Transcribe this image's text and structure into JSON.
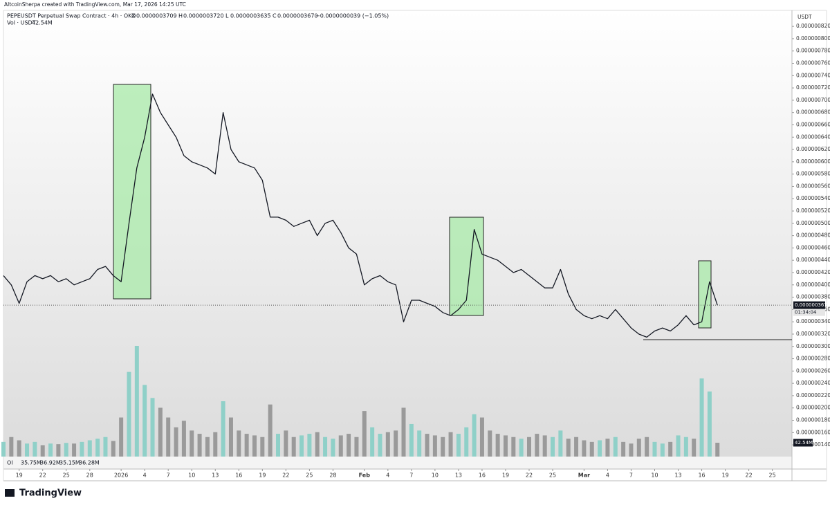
{
  "attribution": "AltcoinSherpa created with TradingView.com, Mar 17, 2026 14:25 UTC",
  "legend": {
    "symbol": "PEPEUSDT Perpetual Swap Contract · 4h · OKX",
    "ohlc": [
      {
        "label": "O",
        "value": "0.0000003709"
      },
      {
        "label": "H",
        "value": "0.0000003720"
      },
      {
        "label": "L",
        "value": "0.0000003635"
      },
      {
        "label": "C",
        "value": "0.0000003670"
      }
    ],
    "change": "−0.0000000039 (−1.05%)"
  },
  "volume_legend": {
    "label": "Vol · USDT",
    "value": "42.54M"
  },
  "oi_legend": {
    "label": "OI",
    "values": [
      "35.75M",
      "36.92M",
      "35.15M",
      "36.28M"
    ]
  },
  "brand": "TradingView",
  "chart_data": [
    {
      "type": "line",
      "y_axis_title": "USDT",
      "color": "#131722",
      "x": [
        -2,
        -1,
        0,
        1,
        2,
        3,
        4,
        5,
        6,
        7,
        8,
        9,
        10,
        11,
        12,
        13,
        14,
        15,
        16,
        17,
        18,
        19,
        20,
        21,
        22,
        23,
        24,
        25,
        26,
        27,
        28,
        29,
        30,
        31,
        32,
        33,
        34,
        35,
        36,
        37,
        38,
        39,
        40,
        41,
        42,
        43,
        44,
        45,
        46,
        47,
        48,
        49,
        50,
        51,
        52,
        53,
        54,
        55,
        56,
        57,
        58,
        59,
        60,
        61,
        62,
        63,
        64,
        65,
        66,
        67,
        68,
        69,
        70,
        71,
        72,
        73,
        74,
        75,
        76,
        77,
        78,
        79,
        80,
        81,
        82,
        83,
        84,
        85,
        86,
        87,
        88,
        89
      ],
      "values": [
        4.15e-07,
        4e-07,
        3.7e-07,
        4.05e-07,
        4.15e-07,
        4.1e-07,
        4.15e-07,
        4.05e-07,
        4.1e-07,
        4e-07,
        4.05e-07,
        4.1e-07,
        4.25e-07,
        4.3e-07,
        4.15e-07,
        4.05e-07,
        5e-07,
        5.9e-07,
        6.4e-07,
        7.1e-07,
        6.8e-07,
        6.6e-07,
        6.4e-07,
        6.1e-07,
        6e-07,
        5.95e-07,
        5.9e-07,
        5.8e-07,
        6.8e-07,
        6.2e-07,
        6e-07,
        5.95e-07,
        5.9e-07,
        5.7e-07,
        5.1e-07,
        5.1e-07,
        5.05e-07,
        4.95e-07,
        5e-07,
        5.05e-07,
        4.8e-07,
        5e-07,
        5.05e-07,
        4.85e-07,
        4.6e-07,
        4.5e-07,
        4e-07,
        4.1e-07,
        4.15e-07,
        4.05e-07,
        4e-07,
        3.4e-07,
        3.75e-07,
        3.75e-07,
        3.7e-07,
        3.65e-07,
        3.55e-07,
        3.5e-07,
        3.6e-07,
        3.75e-07,
        4.9e-07,
        4.5e-07,
        4.45e-07,
        4.4e-07,
        4.3e-07,
        4.2e-07,
        4.25e-07,
        4.15e-07,
        4.05e-07,
        3.95e-07,
        3.95e-07,
        4.25e-07,
        3.85e-07,
        3.6e-07,
        3.5e-07,
        3.45e-07,
        3.5e-07,
        3.45e-07,
        3.6e-07,
        3.45e-07,
        3.3e-07,
        3.2e-07,
        3.15e-07,
        3.25e-07,
        3.3e-07,
        3.25e-07,
        3.35e-07,
        3.5e-07,
        3.35e-07,
        3.4e-07,
        4.05e-07,
        3.67e-07
      ],
      "last_price": {
        "value": 3.67e-07,
        "label": "0.0000003670",
        "countdown": "01:34:04"
      },
      "xlim": [
        -2,
        98.5
      ],
      "xticks": [
        {
          "value": 0,
          "label": "19"
        },
        {
          "value": 3,
          "label": "22"
        },
        {
          "value": 6,
          "label": "25"
        },
        {
          "value": 9,
          "label": "28"
        },
        {
          "value": 13,
          "label": "2026"
        },
        {
          "value": 16,
          "label": "4"
        },
        {
          "value": 19,
          "label": "7"
        },
        {
          "value": 22,
          "label": "10"
        },
        {
          "value": 25,
          "label": "13"
        },
        {
          "value": 28,
          "label": "16"
        },
        {
          "value": 31,
          "label": "19"
        },
        {
          "value": 34,
          "label": "22"
        },
        {
          "value": 37,
          "label": "25"
        },
        {
          "value": 40,
          "label": "28"
        },
        {
          "value": 44,
          "label": "Feb"
        },
        {
          "value": 47,
          "label": "4"
        },
        {
          "value": 50,
          "label": "7"
        },
        {
          "value": 53,
          "label": "10"
        },
        {
          "value": 56,
          "label": "13"
        },
        {
          "value": 59,
          "label": "16"
        },
        {
          "value": 62,
          "label": "19"
        },
        {
          "value": 65,
          "label": "22"
        },
        {
          "value": 68,
          "label": "25"
        },
        {
          "value": 72,
          "label": "Mar"
        },
        {
          "value": 75,
          "label": "4"
        },
        {
          "value": 78,
          "label": "7"
        },
        {
          "value": 81,
          "label": "10"
        },
        {
          "value": 84,
          "label": "13"
        },
        {
          "value": 87,
          "label": "16"
        },
        {
          "value": 90,
          "label": "19"
        },
        {
          "value": 93,
          "label": "22"
        },
        {
          "value": 96,
          "label": "25"
        }
      ],
      "ylim": [
        1.21e-07,
        8.46e-07
      ],
      "yticks": [
        {
          "value": 1.4e-07,
          "label": "0.0000001400"
        },
        {
          "value": 1.6e-07,
          "label": "0.0000001600"
        },
        {
          "value": 1.8e-07,
          "label": "0.0000001800"
        },
        {
          "value": 2e-07,
          "label": "0.0000002000"
        },
        {
          "value": 2.2e-07,
          "label": "0.0000002200"
        },
        {
          "value": 2.4e-07,
          "label": "0.0000002400"
        },
        {
          "value": 2.6e-07,
          "label": "0.0000002600"
        },
        {
          "value": 2.8e-07,
          "label": "0.0000002800"
        },
        {
          "value": 3e-07,
          "label": "0.0000003000"
        },
        {
          "value": 3.2e-07,
          "label": "0.0000003200"
        },
        {
          "value": 3.4e-07,
          "label": "0.0000003400"
        },
        {
          "value": 3.6e-07,
          "label": "0.0000003600"
        },
        {
          "value": 3.8e-07,
          "label": "0.0000003800"
        },
        {
          "value": 4e-07,
          "label": "0.0000004000"
        },
        {
          "value": 4.2e-07,
          "label": "0.0000004200"
        },
        {
          "value": 4.4e-07,
          "label": "0.0000004400"
        },
        {
          "value": 4.6e-07,
          "label": "0.0000004600"
        },
        {
          "value": 4.8e-07,
          "label": "0.0000004800"
        },
        {
          "value": 5e-07,
          "label": "0.0000005000"
        },
        {
          "value": 5.2e-07,
          "label": "0.0000005200"
        },
        {
          "value": 5.4e-07,
          "label": "0.0000005400"
        },
        {
          "value": 5.6e-07,
          "label": "0.0000005600"
        },
        {
          "value": 5.8e-07,
          "label": "0.0000005800"
        },
        {
          "value": 6e-07,
          "label": "0.0000006000"
        },
        {
          "value": 6.2e-07,
          "label": "0.0000006200"
        },
        {
          "value": 6.4e-07,
          "label": "0.0000006400"
        },
        {
          "value": 6.6e-07,
          "label": "0.0000006600"
        },
        {
          "value": 6.8e-07,
          "label": "0.0000006800"
        },
        {
          "value": 7e-07,
          "label": "0.0000007000"
        },
        {
          "value": 7.2e-07,
          "label": "0.0000007200"
        },
        {
          "value": 7.4e-07,
          "label": "0.0000007400"
        },
        {
          "value": 7.6e-07,
          "label": "0.0000007600"
        },
        {
          "value": 7.8e-07,
          "label": "0.0000007800"
        },
        {
          "value": 8e-07,
          "label": "0.0000008000"
        },
        {
          "value": 8.2e-07,
          "label": "0.0000008200"
        }
      ]
    },
    {
      "type": "bar",
      "up_color": "#8fd0c8",
      "down_color": "#9a9a9a",
      "x": [
        -2,
        -1,
        0,
        1,
        2,
        3,
        4,
        5,
        6,
        7,
        8,
        9,
        10,
        11,
        12,
        13,
        14,
        15,
        16,
        17,
        18,
        19,
        20,
        21,
        22,
        23,
        24,
        25,
        26,
        27,
        28,
        29,
        30,
        31,
        32,
        33,
        34,
        35,
        36,
        37,
        38,
        39,
        40,
        41,
        42,
        43,
        44,
        45,
        46,
        47,
        48,
        49,
        50,
        51,
        52,
        53,
        54,
        55,
        56,
        57,
        58,
        59,
        60,
        61,
        62,
        63,
        64,
        65,
        66,
        67,
        68,
        69,
        70,
        71,
        72,
        73,
        74,
        75,
        76,
        77,
        78,
        79,
        80,
        81,
        82,
        83,
        84,
        85,
        86,
        87,
        88,
        89
      ],
      "values": [
        45,
        60,
        50,
        40,
        45,
        35,
        40,
        38,
        42,
        40,
        45,
        50,
        55,
        60,
        48,
        120,
        260,
        340,
        220,
        180,
        150,
        120,
        90,
        110,
        80,
        70,
        60,
        75,
        170,
        120,
        80,
        70,
        65,
        60,
        160,
        70,
        80,
        60,
        65,
        70,
        75,
        60,
        55,
        65,
        70,
        60,
        140,
        90,
        70,
        75,
        80,
        150,
        100,
        80,
        70,
        65,
        60,
        75,
        70,
        90,
        130,
        120,
        80,
        70,
        65,
        60,
        55,
        60,
        70,
        65,
        60,
        80,
        55,
        60,
        50,
        45,
        50,
        55,
        60,
        45,
        40,
        55,
        60,
        45,
        40,
        45,
        65,
        60,
        55,
        240,
        200,
        42.54
      ],
      "last_value_label": "42.54M",
      "xlim": [
        -2,
        98.5
      ],
      "ylim": [
        0,
        340
      ]
    }
  ]
}
